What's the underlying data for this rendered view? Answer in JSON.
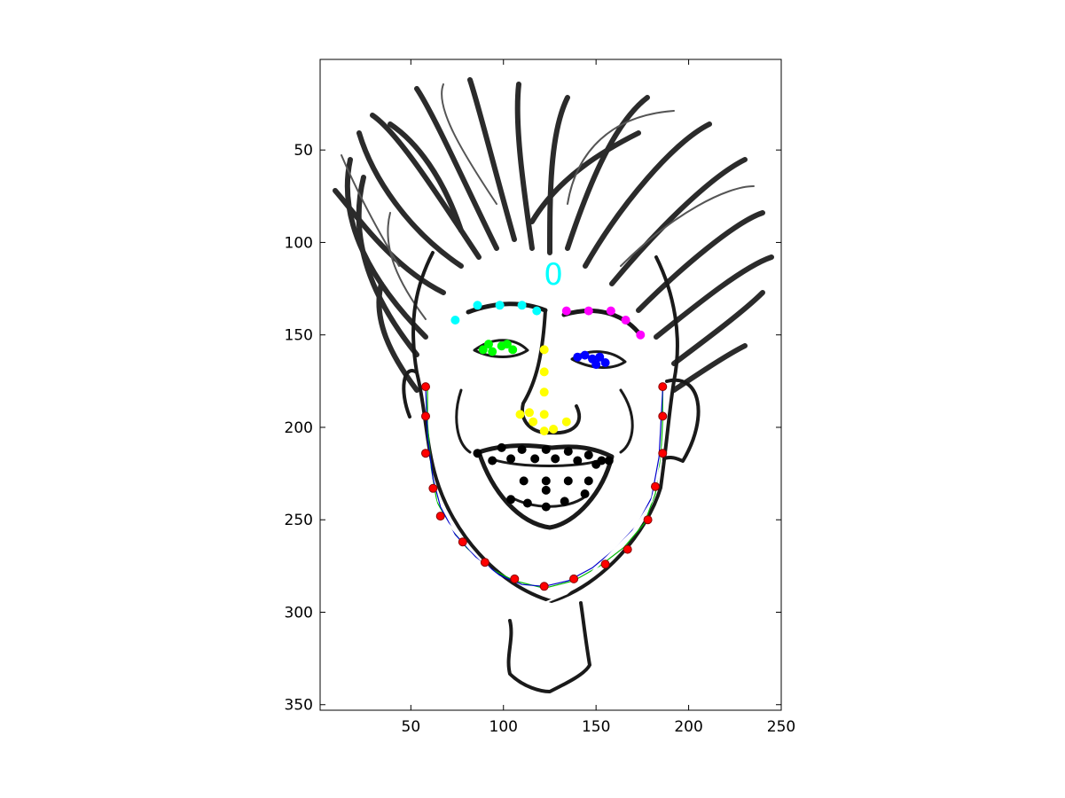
{
  "chart_data": {
    "type": "scatter",
    "title": "",
    "xlabel": "",
    "ylabel": "",
    "xlim": [
      1,
      250
    ],
    "ylim": [
      353,
      1
    ],
    "y_axis_reversed": true,
    "grid": false,
    "legend": "none",
    "background_image": "caricature face (grayscale line drawing, wild hair)",
    "x_ticks": [
      50,
      100,
      150,
      200,
      250
    ],
    "y_ticks": [
      50,
      100,
      150,
      200,
      250,
      300,
      350
    ],
    "annotations": [
      {
        "text": "0",
        "x": 127,
        "y": 117,
        "color": "#00ffff"
      }
    ],
    "series": [
      {
        "color": "#00ffff",
        "x": [
          74,
          86,
          98,
          110,
          118
        ],
        "y": [
          142,
          134,
          134,
          134,
          137
        ]
      },
      {
        "color": "#ff00ff",
        "x": [
          134,
          146,
          158,
          166,
          174
        ],
        "y": [
          137,
          137,
          137,
          142,
          150
        ]
      },
      {
        "color": "#00ff00",
        "x": [
          89,
          92,
          94,
          99,
          102,
          105
        ],
        "y": [
          158,
          155,
          159,
          156,
          155,
          158
        ]
      },
      {
        "color": "#0000ff",
        "x": [
          140,
          144,
          148,
          150,
          152,
          155
        ],
        "y": [
          162,
          161,
          163,
          166,
          162,
          165
        ]
      },
      {
        "color": "#ffff00",
        "x": [
          122,
          122,
          122,
          122,
          116,
          109,
          114,
          122,
          127,
          134
        ],
        "y": [
          158,
          170,
          181,
          193,
          197,
          193,
          192,
          202,
          201,
          197
        ]
      },
      {
        "color": "#000000",
        "x": [
          86,
          99,
          110,
          123,
          135,
          146,
          153,
          157,
          94,
          104,
          117,
          128,
          140,
          150,
          111,
          123,
          135,
          146,
          104,
          113,
          123,
          133,
          144,
          123
        ],
        "y": [
          214,
          211,
          212,
          212,
          213,
          215,
          218,
          218,
          218,
          217,
          217,
          217,
          218,
          220,
          229,
          229,
          229,
          229,
          239,
          241,
          243,
          240,
          236,
          234
        ]
      },
      {
        "color": "#ff0000",
        "x": [
          58,
          58,
          58,
          62,
          66,
          78,
          90,
          106,
          122,
          138,
          155,
          167,
          178,
          182,
          186,
          186,
          186
        ],
        "y": [
          178,
          194,
          214,
          233,
          248,
          262,
          273,
          282,
          286,
          282,
          274,
          266,
          250,
          232,
          214,
          194,
          178
        ]
      }
    ],
    "curves": [
      {
        "color": "#00bb00",
        "x": [
          59,
          59,
          61,
          64,
          70,
          80,
          92,
          106,
          122,
          138,
          152,
          165,
          176,
          182,
          185,
          186,
          186
        ],
        "y": [
          178,
          198,
          222,
          240,
          252,
          265,
          276,
          283,
          287,
          283,
          275,
          265,
          252,
          236,
          216,
          196,
          178
        ]
      },
      {
        "color": "#0000cc",
        "x": [
          58,
          59,
          62,
          66,
          74,
          85,
          98,
          110,
          122,
          135,
          148,
          160,
          172,
          180,
          184,
          186
        ],
        "y": [
          178,
          205,
          228,
          243,
          258,
          270,
          280,
          285,
          286,
          283,
          276,
          266,
          253,
          238,
          216,
          180
        ]
      },
      {
        "color": "#ffffff",
        "x": [
          58,
          60,
          64,
          70,
          82,
          96,
          110,
          122,
          134,
          146,
          158,
          170,
          180,
          185,
          187
        ],
        "y": [
          212,
          228,
          242,
          252,
          266,
          280,
          292,
          295,
          290,
          280,
          268,
          256,
          240,
          220,
          200
        ]
      }
    ]
  }
}
